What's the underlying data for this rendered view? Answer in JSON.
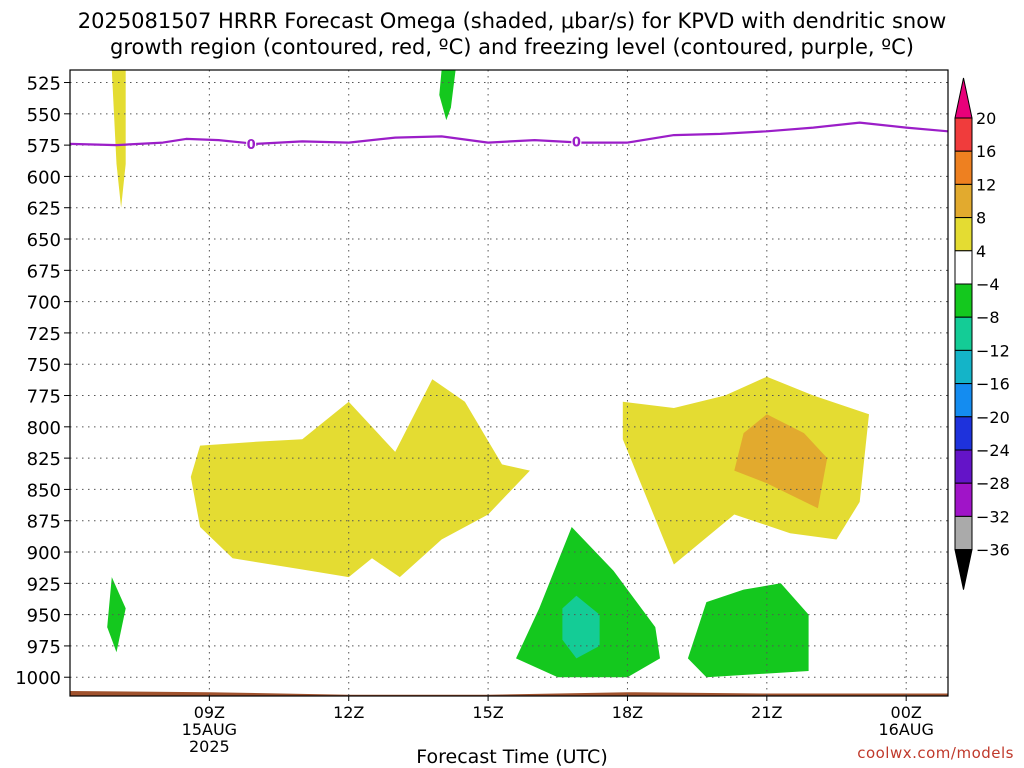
{
  "title": {
    "line1": "2025081507 HRRR Forecast Omega (shaded, μbar/s) for KPVD with dendritic snow",
    "line2": "growth region (contoured, red, ºC) and freezing level (contoured, purple, ºC)"
  },
  "credit": "coolwx.com/models",
  "chart_data": {
    "type": "heatmap",
    "xlabel": "Forecast Time (UTC)",
    "ylabel": "",
    "x_range_hours_utc": [
      6.0,
      24.9
    ],
    "y_range_hpa": [
      515,
      1015
    ],
    "y_ticks": [
      525,
      550,
      575,
      600,
      625,
      650,
      675,
      700,
      725,
      750,
      775,
      800,
      825,
      850,
      875,
      900,
      925,
      950,
      975,
      1000
    ],
    "x_ticks": [
      {
        "hour": 9,
        "label": "09Z",
        "sub1": "15AUG",
        "sub2": "2025"
      },
      {
        "hour": 12,
        "label": "12Z",
        "sub1": "",
        "sub2": ""
      },
      {
        "hour": 15,
        "label": "15Z",
        "sub1": "",
        "sub2": ""
      },
      {
        "hour": 18,
        "label": "18Z",
        "sub1": "",
        "sub2": ""
      },
      {
        "hour": 21,
        "label": "21Z",
        "sub1": "",
        "sub2": ""
      },
      {
        "hour": 24,
        "label": "00Z",
        "sub1": "16AUG",
        "sub2": ""
      }
    ],
    "grid": true,
    "colorbar": {
      "labels": [
        "20",
        "16",
        "12",
        "8",
        "4",
        "−4",
        "−8",
        "−12",
        "−16",
        "−20",
        "−24",
        "−28",
        "−32",
        "−36"
      ],
      "colors": [
        "#e8007a",
        "#f03c3c",
        "#ee8020",
        "#e2aa2e",
        "#e4dc32",
        "#ffffff",
        "#14c81e",
        "#14cc96",
        "#14b4c8",
        "#148cf0",
        "#1e32dc",
        "#6414c8",
        "#a014c8",
        "#aaaaaa",
        "#000000"
      ]
    },
    "freezing_level": {
      "color": "#9b1ec8",
      "contour_label": "0",
      "points": [
        [
          6.0,
          574
        ],
        [
          7.0,
          575
        ],
        [
          8.0,
          573
        ],
        [
          8.5,
          570
        ],
        [
          9.2,
          571
        ],
        [
          10.0,
          574
        ],
        [
          11.0,
          572
        ],
        [
          12.0,
          573
        ],
        [
          13.0,
          569
        ],
        [
          14.0,
          568
        ],
        [
          15.0,
          573
        ],
        [
          16.0,
          571
        ],
        [
          17.0,
          573
        ],
        [
          18.0,
          573
        ],
        [
          19.0,
          567
        ],
        [
          20.0,
          566
        ],
        [
          21.0,
          564
        ],
        [
          22.0,
          561
        ],
        [
          23.0,
          557
        ],
        [
          24.0,
          561
        ],
        [
          24.9,
          564
        ]
      ],
      "label_points": [
        [
          9.9,
          574
        ],
        [
          16.9,
          572
        ]
      ]
    },
    "terrain": {
      "color": "#a0522d",
      "top_hpa": [
        [
          6.0,
          1011
        ],
        [
          9.0,
          1012
        ],
        [
          12.0,
          1014
        ],
        [
          15.0,
          1014
        ],
        [
          18.0,
          1012
        ],
        [
          21.0,
          1013
        ],
        [
          24.9,
          1013
        ]
      ]
    },
    "regions": [
      {
        "level": "4 to 8",
        "color": "#e4dc32",
        "points": [
          [
            6.9,
            515
          ],
          [
            7.2,
            515
          ],
          [
            7.2,
            590
          ],
          [
            7.1,
            625
          ],
          [
            7.0,
            590
          ],
          [
            6.9,
            515
          ]
        ]
      },
      {
        "level": "4 to 8",
        "color": "#e4dc32",
        "points": [
          [
            8.6,
            840
          ],
          [
            8.8,
            815
          ],
          [
            10.0,
            812
          ],
          [
            11.0,
            810
          ],
          [
            12.0,
            780
          ],
          [
            13.0,
            820
          ],
          [
            13.8,
            762
          ],
          [
            14.5,
            780
          ],
          [
            15.3,
            830
          ],
          [
            15.9,
            835
          ],
          [
            15.0,
            870
          ],
          [
            14.0,
            890
          ],
          [
            13.1,
            920
          ],
          [
            12.5,
            905
          ],
          [
            12.0,
            920
          ],
          [
            11.0,
            914
          ],
          [
            9.5,
            905
          ],
          [
            8.8,
            880
          ],
          [
            8.6,
            840
          ]
        ]
      },
      {
        "level": "4 to 8",
        "color": "#e4dc32",
        "points": [
          [
            17.9,
            780
          ],
          [
            19.0,
            785
          ],
          [
            20.1,
            775
          ],
          [
            21.0,
            760
          ],
          [
            22.0,
            775
          ],
          [
            23.2,
            790
          ],
          [
            23.0,
            860
          ],
          [
            22.5,
            890
          ],
          [
            21.5,
            885
          ],
          [
            20.3,
            870
          ],
          [
            19.0,
            910
          ],
          [
            17.9,
            810
          ],
          [
            17.9,
            780
          ]
        ]
      },
      {
        "level": "8 to 12",
        "color": "#e2aa2e",
        "points": [
          [
            20.5,
            805
          ],
          [
            21.0,
            790
          ],
          [
            21.8,
            805
          ],
          [
            22.3,
            825
          ],
          [
            22.1,
            865
          ],
          [
            21.0,
            845
          ],
          [
            20.3,
            835
          ],
          [
            20.5,
            805
          ]
        ]
      },
      {
        "level": "-4 to -8",
        "color": "#14c81e",
        "points": [
          [
            14.0,
            515
          ],
          [
            14.3,
            515
          ],
          [
            14.2,
            545
          ],
          [
            14.1,
            555
          ],
          [
            13.95,
            535
          ],
          [
            14.0,
            515
          ]
        ]
      },
      {
        "level": "-4 to -8",
        "color": "#14c81e",
        "points": [
          [
            6.9,
            920
          ],
          [
            7.2,
            945
          ],
          [
            7.0,
            980
          ],
          [
            6.8,
            960
          ],
          [
            6.9,
            920
          ]
        ]
      },
      {
        "level": "-4 to -8",
        "color": "#14c81e",
        "points": [
          [
            16.8,
            880
          ],
          [
            17.7,
            915
          ],
          [
            18.6,
            960
          ],
          [
            18.7,
            985
          ],
          [
            18.0,
            1000
          ],
          [
            16.5,
            1000
          ],
          [
            15.6,
            985
          ],
          [
            16.1,
            945
          ],
          [
            16.8,
            880
          ]
        ]
      },
      {
        "level": "-8 to -12",
        "color": "#14cc96",
        "points": [
          [
            16.9,
            935
          ],
          [
            17.4,
            950
          ],
          [
            17.4,
            975
          ],
          [
            16.9,
            985
          ],
          [
            16.6,
            970
          ],
          [
            16.6,
            945
          ],
          [
            16.9,
            935
          ]
        ]
      },
      {
        "level": "-4 to -8",
        "color": "#14c81e",
        "points": [
          [
            19.7,
            940
          ],
          [
            20.5,
            930
          ],
          [
            21.3,
            925
          ],
          [
            21.9,
            950
          ],
          [
            21.9,
            995
          ],
          [
            19.7,
            1000
          ],
          [
            19.3,
            985
          ],
          [
            19.7,
            940
          ]
        ]
      }
    ]
  }
}
